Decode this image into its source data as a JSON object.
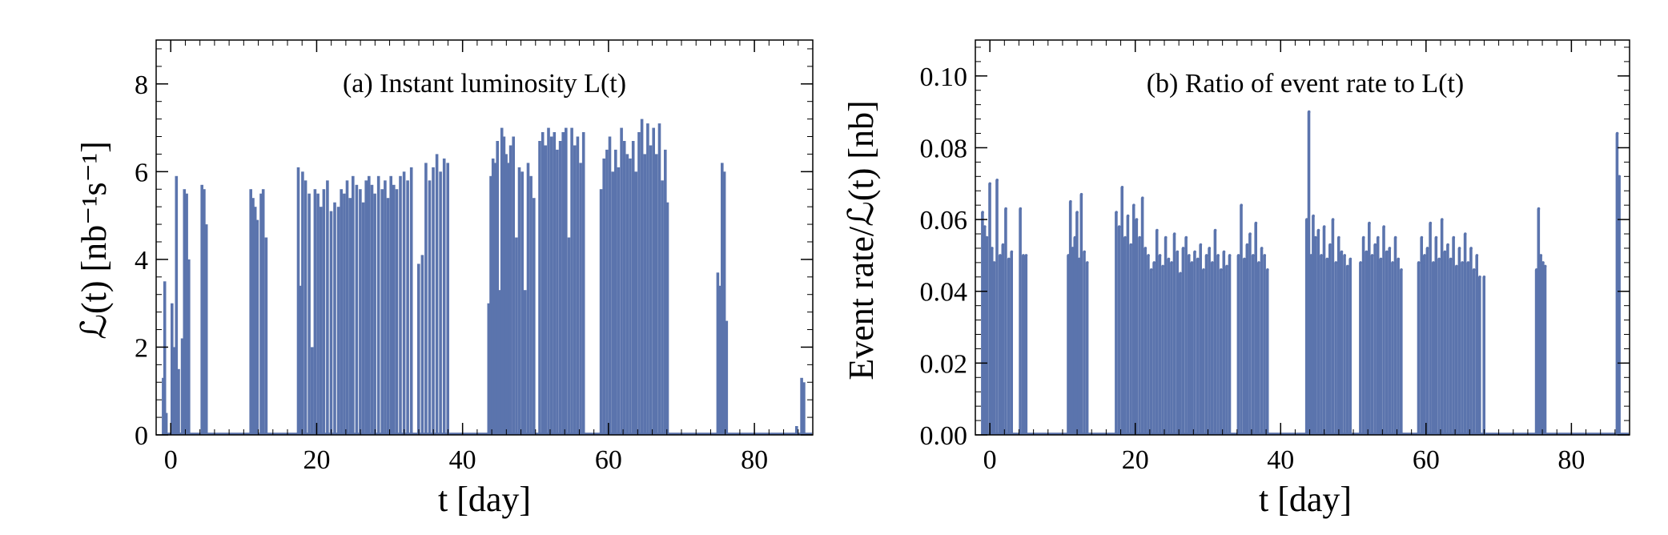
{
  "colors": {
    "series": "#5b74ad",
    "axes": "#000000",
    "background": "#ffffff"
  },
  "chart_data": [
    {
      "type": "bar",
      "title": "(a) Instant luminosity L(t)",
      "xlabel": "t [day]",
      "ylabel": "ℒ(t) [nb⁻¹s⁻¹]",
      "xlim": [
        -2,
        88
      ],
      "ylim": [
        0,
        9
      ],
      "xticks": [
        0,
        20,
        40,
        60,
        80
      ],
      "yticks": [
        0,
        2,
        4,
        6,
        8
      ],
      "xtick_labels": [
        "0",
        "20",
        "40",
        "60",
        "80"
      ],
      "ytick_labels": [
        "0",
        "2",
        "4",
        "6",
        "8"
      ],
      "grid": false,
      "legend": "none",
      "series": [
        {
          "x": [
            -1.0,
            -0.8,
            -0.6,
            0.2,
            0.5,
            0.8,
            1.1,
            1.6,
            1.9,
            2.2,
            2.5,
            4.3,
            4.6,
            4.9,
            11.0,
            11.3,
            11.6,
            11.9,
            12.4,
            12.7,
            13.1,
            17.5,
            17.8,
            18.1,
            18.5,
            19.0,
            19.4,
            19.8,
            20.2,
            20.6,
            21.0,
            21.5,
            22.0,
            22.5,
            23.0,
            23.4,
            23.8,
            24.2,
            24.6,
            25.0,
            25.5,
            26.0,
            26.4,
            26.8,
            27.2,
            27.6,
            28.0,
            28.5,
            29.0,
            29.4,
            29.8,
            30.2,
            30.6,
            31.0,
            31.5,
            32.0,
            32.5,
            33.0,
            34.0,
            34.5,
            35.0,
            35.5,
            36.0,
            36.5,
            37.0,
            37.5,
            38.0,
            43.6,
            43.9,
            44.2,
            44.5,
            44.8,
            45.1,
            45.4,
            45.7,
            46.0,
            46.3,
            46.6,
            47.0,
            47.4,
            47.8,
            48.2,
            48.6,
            49.0,
            49.4,
            49.8,
            50.6,
            51.0,
            51.4,
            51.8,
            52.2,
            52.6,
            53.0,
            53.4,
            53.8,
            54.2,
            54.6,
            55.0,
            55.4,
            55.8,
            56.2,
            56.6,
            59.0,
            59.4,
            59.8,
            60.2,
            60.6,
            61.0,
            61.4,
            61.8,
            62.2,
            62.6,
            63.0,
            63.4,
            63.8,
            64.2,
            64.6,
            65.0,
            65.4,
            65.8,
            66.2,
            66.6,
            67.0,
            67.4,
            67.8,
            68.1,
            75.0,
            75.3,
            75.6,
            75.9,
            76.2,
            85.8,
            86.5,
            86.8
          ],
          "values": [
            1.3,
            3.5,
            0.5,
            3.0,
            2.0,
            5.9,
            1.5,
            2.2,
            5.6,
            5.5,
            4.0,
            5.7,
            5.6,
            4.8,
            5.6,
            5.4,
            5.2,
            4.9,
            5.5,
            5.6,
            4.5,
            6.1,
            3.4,
            6.0,
            5.8,
            5.5,
            2.0,
            5.6,
            5.5,
            5.2,
            5.6,
            5.8,
            5.1,
            5.3,
            5.2,
            5.6,
            5.5,
            5.8,
            5.4,
            5.9,
            5.7,
            5.6,
            5.3,
            5.8,
            5.9,
            5.7,
            5.5,
            5.9,
            5.6,
            5.8,
            5.4,
            5.9,
            5.7,
            5.6,
            5.9,
            6.0,
            5.8,
            6.1,
            3.9,
            4.1,
            6.2,
            5.8,
            6.1,
            6.4,
            6.0,
            6.3,
            6.2,
            3.0,
            5.9,
            6.3,
            6.2,
            6.7,
            3.3,
            7.0,
            6.8,
            6.4,
            6.2,
            6.6,
            6.8,
            4.5,
            6.1,
            6.0,
            3.3,
            6.2,
            5.9,
            5.4,
            6.7,
            6.9,
            6.6,
            7.0,
            6.8,
            6.9,
            6.5,
            6.7,
            6.9,
            7.0,
            4.5,
            7.0,
            6.6,
            6.8,
            6.2,
            6.9,
            5.6,
            6.3,
            6.5,
            6.8,
            6.0,
            6.5,
            6.1,
            7.0,
            6.7,
            6.4,
            6.3,
            6.7,
            6.0,
            6.9,
            7.2,
            6.4,
            7.1,
            6.6,
            7.0,
            6.4,
            7.1,
            5.8,
            6.5,
            5.3,
            3.7,
            3.4,
            6.2,
            6.0,
            2.6,
            0.2,
            1.3,
            1.2
          ]
        }
      ]
    },
    {
      "type": "bar",
      "title": "(b) Ratio of event rate to L(t)",
      "xlabel": "t [day]",
      "ylabel": "Event rate/ℒ(t) [nb]",
      "xlim": [
        -2,
        88
      ],
      "ylim": [
        0,
        0.11
      ],
      "xticks": [
        0,
        20,
        40,
        60,
        80
      ],
      "yticks": [
        0,
        0.02,
        0.04,
        0.06,
        0.08,
        0.1
      ],
      "xtick_labels": [
        "0",
        "20",
        "40",
        "60",
        "80"
      ],
      "ytick_labels": [
        "0.00",
        "0.02",
        "0.04",
        "0.06",
        "0.08",
        "0.10"
      ],
      "grid": false,
      "legend": "none",
      "series": [
        {
          "x": [
            -1.0,
            -0.7,
            -0.4,
            0.0,
            0.3,
            0.6,
            1.0,
            1.4,
            1.8,
            2.2,
            2.6,
            3.0,
            4.2,
            4.6,
            5.0,
            10.8,
            11.1,
            11.4,
            11.7,
            12.0,
            12.3,
            12.6,
            13.0,
            13.4,
            17.4,
            17.8,
            18.2,
            18.6,
            19.0,
            19.4,
            19.8,
            20.2,
            20.6,
            21.0,
            21.4,
            21.8,
            22.2,
            22.6,
            23.0,
            23.4,
            23.8,
            24.2,
            24.6,
            25.0,
            25.4,
            25.8,
            26.2,
            26.6,
            27.0,
            27.4,
            27.8,
            28.2,
            28.6,
            29.0,
            29.4,
            29.8,
            30.2,
            30.6,
            31.0,
            31.4,
            31.8,
            32.2,
            32.6,
            33.0,
            34.2,
            34.6,
            35.0,
            35.4,
            35.8,
            36.2,
            36.6,
            37.0,
            37.4,
            37.8,
            38.2,
            43.6,
            43.9,
            44.2,
            44.5,
            44.8,
            45.2,
            45.6,
            46.0,
            46.4,
            46.8,
            47.2,
            47.6,
            48.0,
            48.4,
            48.8,
            49.2,
            49.6,
            51.0,
            51.4,
            51.8,
            52.2,
            52.6,
            53.0,
            53.4,
            53.8,
            54.2,
            54.6,
            55.0,
            55.4,
            55.8,
            56.2,
            56.6,
            59.0,
            59.4,
            59.8,
            60.2,
            60.6,
            61.0,
            61.4,
            61.8,
            62.2,
            62.6,
            63.0,
            63.4,
            63.8,
            64.2,
            64.6,
            65.0,
            65.4,
            65.8,
            66.2,
            66.6,
            67.0,
            67.4,
            68.0,
            75.2,
            75.5,
            75.8,
            76.1,
            76.4,
            86.3,
            86.6
          ],
          "values": [
            0.062,
            0.058,
            0.055,
            0.07,
            0.052,
            0.048,
            0.071,
            0.05,
            0.053,
            0.063,
            0.049,
            0.051,
            0.063,
            0.05,
            0.05,
            0.05,
            0.065,
            0.052,
            0.055,
            0.062,
            0.049,
            0.067,
            0.051,
            0.048,
            0.062,
            0.058,
            0.069,
            0.055,
            0.061,
            0.053,
            0.064,
            0.06,
            0.055,
            0.066,
            0.052,
            0.05,
            0.046,
            0.048,
            0.057,
            0.05,
            0.047,
            0.055,
            0.049,
            0.048,
            0.056,
            0.051,
            0.045,
            0.052,
            0.055,
            0.05,
            0.048,
            0.051,
            0.049,
            0.053,
            0.046,
            0.05,
            0.052,
            0.048,
            0.057,
            0.05,
            0.046,
            0.051,
            0.047,
            0.05,
            0.05,
            0.064,
            0.049,
            0.053,
            0.056,
            0.05,
            0.059,
            0.048,
            0.052,
            0.05,
            0.046,
            0.06,
            0.09,
            0.05,
            0.061,
            0.055,
            0.057,
            0.05,
            0.058,
            0.049,
            0.053,
            0.06,
            0.048,
            0.055,
            0.051,
            0.05,
            0.047,
            0.049,
            0.048,
            0.055,
            0.051,
            0.059,
            0.05,
            0.053,
            0.055,
            0.049,
            0.058,
            0.051,
            0.052,
            0.048,
            0.055,
            0.049,
            0.046,
            0.048,
            0.055,
            0.05,
            0.052,
            0.059,
            0.048,
            0.055,
            0.049,
            0.06,
            0.051,
            0.053,
            0.049,
            0.055,
            0.047,
            0.052,
            0.048,
            0.056,
            0.048,
            0.052,
            0.046,
            0.05,
            0.044,
            0.044,
            0.046,
            0.063,
            0.05,
            0.048,
            0.047,
            0.084,
            0.072
          ]
        }
      ]
    }
  ]
}
